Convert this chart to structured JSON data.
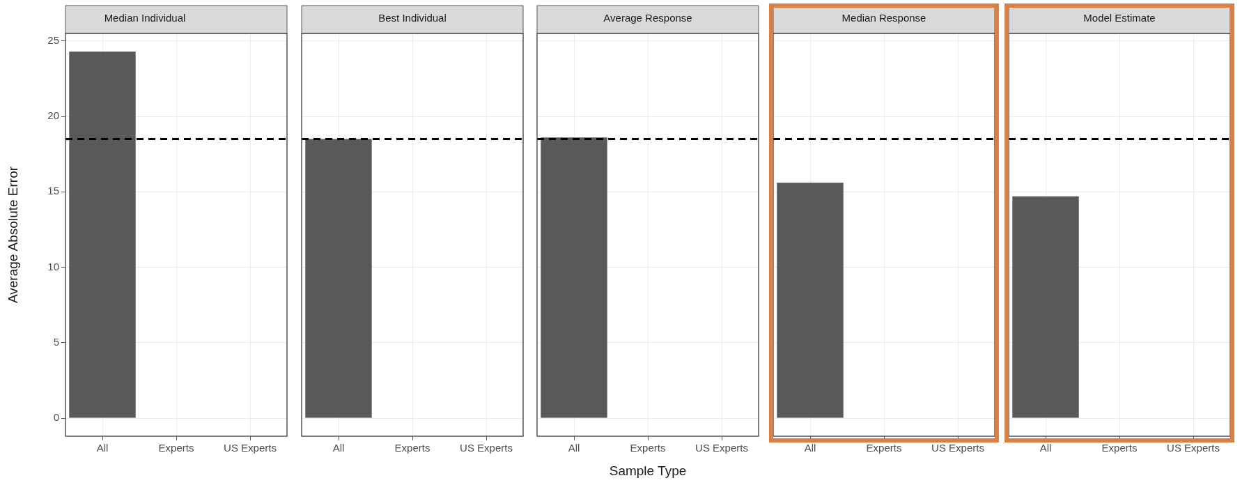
{
  "chart_data": [
    {
      "type": "bar",
      "title": "Median Individual",
      "ylabel": "Average Absolute Error",
      "categories": [
        "All",
        "Experts",
        "US Experts"
      ],
      "values": [
        24.3,
        null,
        null
      ],
      "color": "#595959",
      "ylim": [
        -1.2,
        25.5
      ],
      "yticks": [
        0,
        5,
        10,
        15,
        20,
        25
      ],
      "grid": true,
      "ref_lines": [
        {
          "axis": "y",
          "value": 18.5,
          "color": "#000000",
          "line_style": "dashed"
        }
      ]
    },
    {
      "type": "bar",
      "title": "Best Individual",
      "categories": [
        "All",
        "Experts",
        "US Experts"
      ],
      "values": [
        18.5,
        null,
        null
      ],
      "color": "#595959",
      "ylim": [
        -1.2,
        25.5
      ],
      "yticks": [
        0,
        5,
        10,
        15,
        20,
        25
      ],
      "grid": true,
      "tick_labels": "x",
      "ref_lines": [
        {
          "axis": "y",
          "value": 18.5,
          "color": "#000000",
          "line_style": "dashed"
        }
      ]
    },
    {
      "type": "bar",
      "title": "Average Response",
      "xlabel": "Sample Type",
      "categories": [
        "All",
        "Experts",
        "US Experts"
      ],
      "values": [
        18.6,
        null,
        null
      ],
      "color": "#595959",
      "ylim": [
        -1.2,
        25.5
      ],
      "yticks": [
        0,
        5,
        10,
        15,
        20,
        25
      ],
      "grid": true,
      "tick_labels": "x",
      "ref_lines": [
        {
          "axis": "y",
          "value": 18.5,
          "color": "#000000",
          "line_style": "dashed"
        }
      ]
    },
    {
      "type": "bar",
      "title": "Median Response",
      "categories": [
        "All",
        "Experts",
        "US Experts"
      ],
      "values": [
        15.6,
        null,
        null
      ],
      "color": "#595959",
      "ylim": [
        -1.2,
        25.5
      ],
      "yticks": [
        0,
        5,
        10,
        15,
        20,
        25
      ],
      "grid": true,
      "tick_labels": "x",
      "ref_lines": [
        {
          "axis": "y",
          "value": 18.5,
          "color": "#000000",
          "line_style": "dashed"
        }
      ]
    },
    {
      "type": "bar",
      "title": "Model Estimate",
      "categories": [
        "All",
        "Experts",
        "US Experts"
      ],
      "values": [
        14.7,
        null,
        null
      ],
      "color": "#595959",
      "ylim": [
        -1.2,
        25.5
      ],
      "yticks": [
        0,
        5,
        10,
        15,
        20,
        25
      ],
      "grid": true,
      "tick_labels": "x",
      "ref_lines": [
        {
          "axis": "y",
          "value": 18.5,
          "color": "#000000",
          "line_style": "dashed"
        }
      ]
    }
  ]
}
